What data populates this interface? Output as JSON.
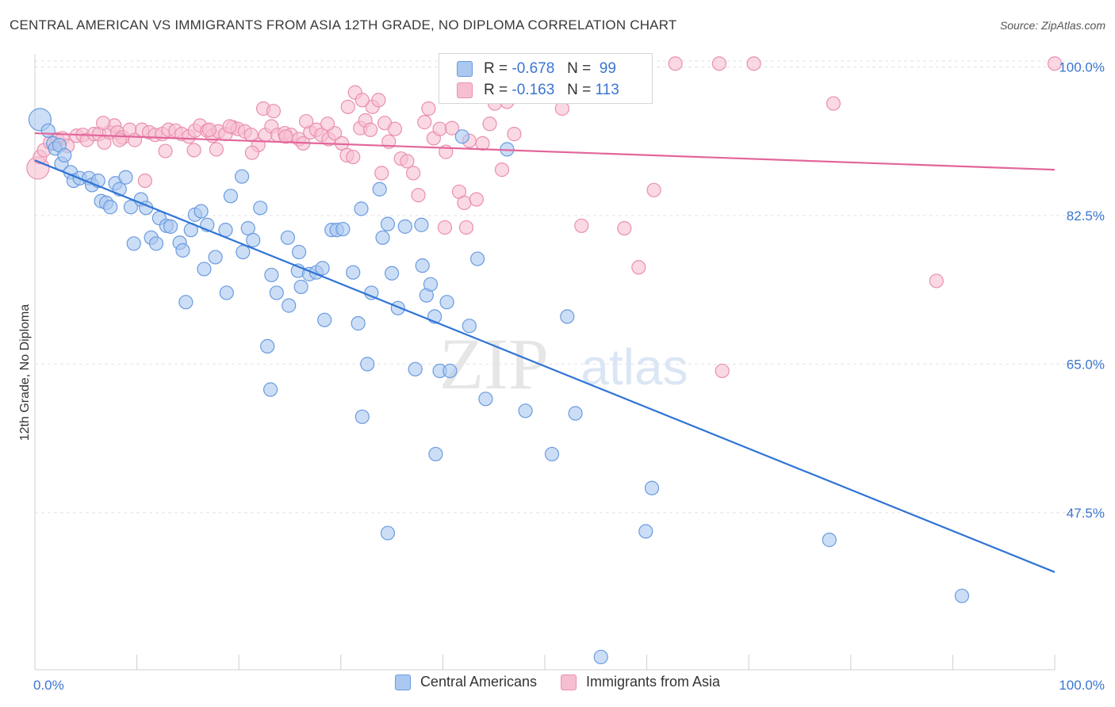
{
  "title": "CENTRAL AMERICAN VS IMMIGRANTS FROM ASIA 12TH GRADE, NO DIPLOMA CORRELATION CHART",
  "source": "Source: ZipAtlas.com",
  "watermark": {
    "zip": "ZIP",
    "atlas": "atlas"
  },
  "legend_top": {
    "rows": [
      {
        "r_label": "R =",
        "r_value": "-0.678",
        "n_label": "N =",
        "n_value": "99"
      },
      {
        "r_label": "R =",
        "r_value": "-0.163",
        "n_label": "N =",
        "n_value": "113"
      }
    ]
  },
  "legend_bottom": {
    "series1": "Central Americans",
    "series2": "Immigrants from Asia"
  },
  "colors": {
    "blue_fill": "#aac8f0",
    "blue_stroke": "#6a9be0",
    "blue_line": "#2f74d6",
    "pink_fill": "#f6bfd1",
    "pink_stroke": "#ea8fb0",
    "pink_line": "#e2669a",
    "axis_text": "#3a75d1",
    "grid": "#e3e3e3"
  },
  "chart_data": {
    "type": "scatter",
    "xlabel": "",
    "ylabel": "12th Grade, No Diploma",
    "xlim": [
      0,
      100
    ],
    "ylim": [
      29,
      100.7
    ],
    "x_tick_labels": [
      {
        "v": 0,
        "label": "0.0%"
      },
      {
        "v": 100,
        "label": "100.0%"
      }
    ],
    "y_tick_labels": [
      {
        "v": 100,
        "label": "100.0%"
      },
      {
        "v": 82.5,
        "label": "82.5%"
      },
      {
        "v": 65,
        "label": "65.0%"
      },
      {
        "v": 47.5,
        "label": "47.5%"
      }
    ],
    "grid": true,
    "legend": "top-center",
    "series": [
      {
        "name": "Central Americans",
        "trend": {
          "x": [
            0,
            100
          ],
          "y": [
            89.0,
            40.5
          ]
        },
        "points": [
          [
            0.5,
            93.8
          ],
          [
            1.3,
            92.5
          ],
          [
            1.8,
            91.0
          ],
          [
            2.0,
            90.4
          ],
          [
            2.4,
            90.8
          ],
          [
            2.6,
            88.6
          ],
          [
            2.9,
            89.6
          ],
          [
            3.5,
            87.6
          ],
          [
            3.8,
            86.6
          ],
          [
            4.4,
            86.9
          ],
          [
            5.3,
            86.9
          ],
          [
            5.6,
            86.1
          ],
          [
            6.2,
            86.6
          ],
          [
            6.5,
            84.2
          ],
          [
            7.0,
            84.0
          ],
          [
            7.4,
            83.5
          ],
          [
            7.9,
            86.3
          ],
          [
            8.3,
            85.6
          ],
          [
            8.9,
            87.0
          ],
          [
            9.4,
            83.5
          ],
          [
            10.4,
            84.4
          ],
          [
            10.9,
            83.4
          ],
          [
            12.2,
            82.2
          ],
          [
            12.9,
            81.3
          ],
          [
            13.3,
            81.2
          ],
          [
            9.7,
            79.2
          ],
          [
            11.4,
            79.9
          ],
          [
            11.9,
            79.2
          ],
          [
            14.2,
            79.3
          ],
          [
            14.5,
            78.4
          ],
          [
            15.3,
            80.8
          ],
          [
            15.7,
            82.6
          ],
          [
            16.3,
            83.0
          ],
          [
            16.9,
            81.4
          ],
          [
            17.7,
            77.6
          ],
          [
            16.6,
            76.2
          ],
          [
            18.7,
            80.8
          ],
          [
            19.2,
            84.8
          ],
          [
            20.4,
            78.2
          ],
          [
            20.9,
            81.0
          ],
          [
            21.4,
            79.6
          ],
          [
            22.1,
            83.4
          ],
          [
            23.2,
            75.5
          ],
          [
            23.7,
            73.4
          ],
          [
            24.8,
            79.9
          ],
          [
            24.9,
            71.9
          ],
          [
            25.9,
            78.2
          ],
          [
            26.1,
            74.1
          ],
          [
            25.8,
            76.0
          ],
          [
            26.9,
            75.6
          ],
          [
            27.6,
            75.8
          ],
          [
            28.2,
            76.3
          ],
          [
            28.4,
            70.2
          ],
          [
            29.1,
            80.8
          ],
          [
            29.6,
            80.8
          ],
          [
            30.2,
            80.9
          ],
          [
            31.2,
            75.8
          ],
          [
            31.7,
            69.8
          ],
          [
            32.0,
            83.3
          ],
          [
            32.6,
            65.0
          ],
          [
            33.0,
            73.4
          ],
          [
            33.8,
            85.6
          ],
          [
            34.1,
            79.9
          ],
          [
            34.6,
            81.5
          ],
          [
            35.0,
            75.7
          ],
          [
            35.6,
            71.6
          ],
          [
            36.3,
            81.2
          ],
          [
            37.3,
            64.4
          ],
          [
            37.9,
            81.4
          ],
          [
            38.0,
            76.6
          ],
          [
            38.4,
            73.1
          ],
          [
            38.8,
            74.4
          ],
          [
            39.2,
            70.6
          ],
          [
            39.7,
            64.2
          ],
          [
            40.4,
            72.3
          ],
          [
            40.7,
            64.2
          ],
          [
            20.3,
            87.1
          ],
          [
            14.8,
            72.3
          ],
          [
            18.8,
            73.4
          ],
          [
            22.8,
            67.1
          ],
          [
            23.1,
            62.0
          ],
          [
            32.1,
            58.8
          ],
          [
            34.6,
            45.1
          ],
          [
            39.3,
            54.4
          ],
          [
            41.9,
            91.8
          ],
          [
            42.6,
            69.5
          ],
          [
            43.4,
            77.4
          ],
          [
            44.2,
            60.9
          ],
          [
            48.1,
            59.5
          ],
          [
            48.6,
            97.2
          ],
          [
            50.7,
            54.4
          ],
          [
            52.2,
            70.6
          ],
          [
            53.0,
            59.2
          ],
          [
            59.9,
            45.3
          ],
          [
            60.5,
            50.4
          ],
          [
            77.9,
            44.3
          ],
          [
            90.9,
            37.7
          ],
          [
            46.3,
            90.3
          ],
          [
            55.5,
            30.5
          ]
        ]
      },
      {
        "name": "Immigrants from Asia",
        "trend": {
          "x": [
            0,
            100
          ],
          "y": [
            92.2,
            87.9
          ]
        },
        "points": [
          [
            0.3,
            88.1
          ],
          [
            0.5,
            89.4
          ],
          [
            0.9,
            90.2
          ],
          [
            1.5,
            91.1
          ],
          [
            2.2,
            91.5
          ],
          [
            2.7,
            91.6
          ],
          [
            3.2,
            90.7
          ],
          [
            4.1,
            91.9
          ],
          [
            4.7,
            92.0
          ],
          [
            5.1,
            91.4
          ],
          [
            5.8,
            92.1
          ],
          [
            6.3,
            92.1
          ],
          [
            6.8,
            91.1
          ],
          [
            7.3,
            92.3
          ],
          [
            7.8,
            93.1
          ],
          [
            8.1,
            92.3
          ],
          [
            8.6,
            91.7
          ],
          [
            9.3,
            92.6
          ],
          [
            9.8,
            91.4
          ],
          [
            10.5,
            92.6
          ],
          [
            11.2,
            92.3
          ],
          [
            11.8,
            92.0
          ],
          [
            12.5,
            92.1
          ],
          [
            13.1,
            92.6
          ],
          [
            13.8,
            92.5
          ],
          [
            14.4,
            92.1
          ],
          [
            15.1,
            91.8
          ],
          [
            15.7,
            92.5
          ],
          [
            16.2,
            93.1
          ],
          [
            16.9,
            92.5
          ],
          [
            17.4,
            91.9
          ],
          [
            18.0,
            92.4
          ],
          [
            18.7,
            92.1
          ],
          [
            19.4,
            92.9
          ],
          [
            19.9,
            92.7
          ],
          [
            20.6,
            92.4
          ],
          [
            21.2,
            92.0
          ],
          [
            21.9,
            90.8
          ],
          [
            22.6,
            92.0
          ],
          [
            23.2,
            93.0
          ],
          [
            23.8,
            92.0
          ],
          [
            24.5,
            92.2
          ],
          [
            25.1,
            92.0
          ],
          [
            25.9,
            91.5
          ],
          [
            26.3,
            91.0
          ],
          [
            27.0,
            92.3
          ],
          [
            27.6,
            92.6
          ],
          [
            28.1,
            92.0
          ],
          [
            28.8,
            91.5
          ],
          [
            29.4,
            92.2
          ],
          [
            30.1,
            91.0
          ],
          [
            30.6,
            89.6
          ],
          [
            31.2,
            89.4
          ],
          [
            31.9,
            92.8
          ],
          [
            32.4,
            93.7
          ],
          [
            33.1,
            95.3
          ],
          [
            33.7,
            96.1
          ],
          [
            34.3,
            93.4
          ],
          [
            34.7,
            91.2
          ],
          [
            35.3,
            92.7
          ],
          [
            35.9,
            89.2
          ],
          [
            36.5,
            88.9
          ],
          [
            37.1,
            87.5
          ],
          [
            37.6,
            84.9
          ],
          [
            38.2,
            93.5
          ],
          [
            38.6,
            95.1
          ],
          [
            39.1,
            91.6
          ],
          [
            39.7,
            92.7
          ],
          [
            40.3,
            90.0
          ],
          [
            40.9,
            92.8
          ],
          [
            41.6,
            85.3
          ],
          [
            42.1,
            84.0
          ],
          [
            42.6,
            91.3
          ],
          [
            43.3,
            84.4
          ],
          [
            43.9,
            91.0
          ],
          [
            44.6,
            93.3
          ],
          [
            45.1,
            95.7
          ],
          [
            45.8,
            87.9
          ],
          [
            46.3,
            95.9
          ],
          [
            47.0,
            92.1
          ],
          [
            6.7,
            93.4
          ],
          [
            8.3,
            91.4
          ],
          [
            10.8,
            86.6
          ],
          [
            12.8,
            90.1
          ],
          [
            15.6,
            90.2
          ],
          [
            17.1,
            92.6
          ],
          [
            17.8,
            90.3
          ],
          [
            19.1,
            93.0
          ],
          [
            21.3,
            89.9
          ],
          [
            22.4,
            95.1
          ],
          [
            23.4,
            94.8
          ],
          [
            24.6,
            91.8
          ],
          [
            26.6,
            93.6
          ],
          [
            28.7,
            93.3
          ],
          [
            30.7,
            95.3
          ],
          [
            31.4,
            97.0
          ],
          [
            32.1,
            96.1
          ],
          [
            32.9,
            92.6
          ],
          [
            34.0,
            87.5
          ],
          [
            40.2,
            81.1
          ],
          [
            42.3,
            81.1
          ],
          [
            51.7,
            95.1
          ],
          [
            53.6,
            81.3
          ],
          [
            57.8,
            81.0
          ],
          [
            59.2,
            76.4
          ],
          [
            60.7,
            85.5
          ],
          [
            62.8,
            100.4
          ],
          [
            67.1,
            100.4
          ],
          [
            70.5,
            100.4
          ],
          [
            78.3,
            95.7
          ],
          [
            88.4,
            74.8
          ],
          [
            100.0,
            100.4
          ],
          [
            67.4,
            64.2
          ]
        ]
      }
    ]
  }
}
